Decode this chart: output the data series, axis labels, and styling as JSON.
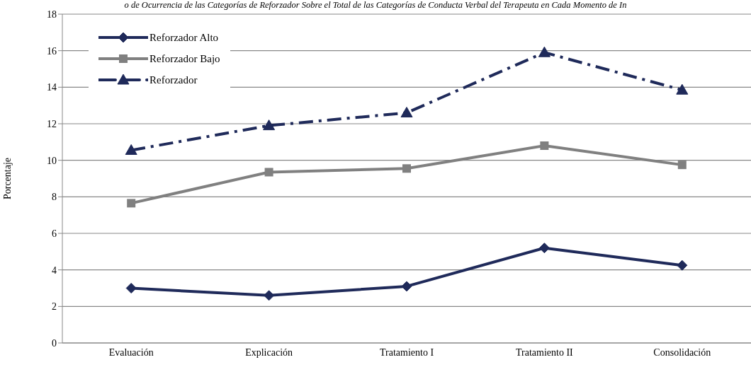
{
  "chart_data": {
    "type": "line",
    "title": "o de Ocurrencia de las Categorías de Reforzador Sobre el Total de las Categorías de Conducta Verbal del Terapeuta en Cada Momento de In",
    "ylabel": "Porcentaje",
    "categories": [
      "Evaluación",
      "Explicación",
      "Tratamiento I",
      "Tratamiento II",
      "Consolidación"
    ],
    "series": [
      {
        "name": "Reforzador Alto",
        "color": "#1f2a5a",
        "marker": "diamond",
        "line_style": "solid",
        "values": [
          3.0,
          2.6,
          3.1,
          5.2,
          4.25
        ]
      },
      {
        "name": "Reforzador Bajo",
        "color": "#808080",
        "marker": "square",
        "line_style": "solid",
        "values": [
          7.65,
          9.35,
          9.55,
          10.8,
          9.75
        ]
      },
      {
        "name": "Reforzador",
        "color": "#1f2a5a",
        "marker": "triangle",
        "line_style": "dashed",
        "values": [
          10.55,
          11.9,
          12.6,
          15.9,
          13.85
        ]
      }
    ],
    "ylim": [
      0,
      18
    ],
    "yticks": [
      0,
      2,
      4,
      6,
      8,
      10,
      12,
      14,
      16,
      18
    ],
    "grid": "y",
    "legend": "top left"
  }
}
